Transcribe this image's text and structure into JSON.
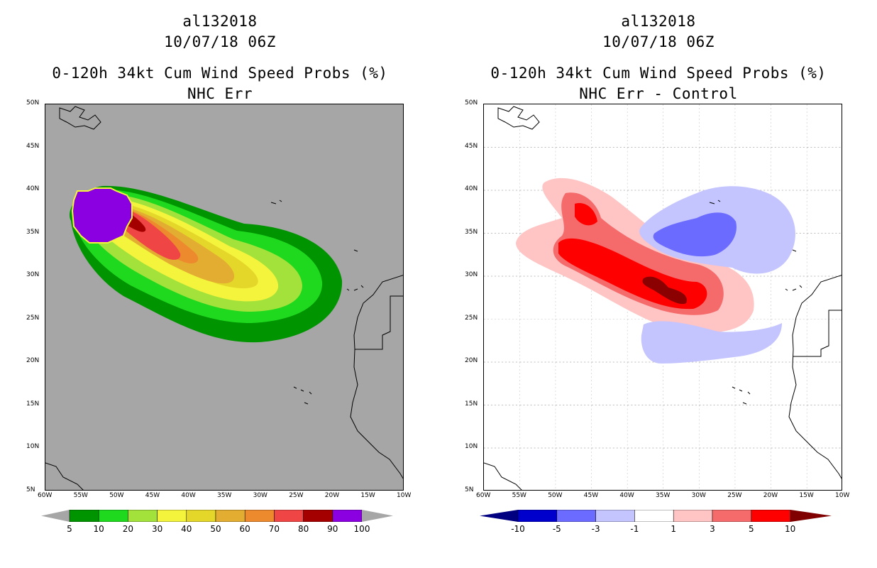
{
  "left": {
    "title_line1": "al132018",
    "title_line2": "10/07/18 06Z",
    "title_line3": "0-120h 34kt Cum Wind Speed Probs (%)",
    "title_line4": "NHC Err",
    "colorbar_labels": [
      "5",
      "10",
      "20",
      "30",
      "40",
      "50",
      "60",
      "70",
      "80",
      "90",
      "100"
    ],
    "colorbar_colors": [
      "#009400",
      "#1ed91e",
      "#a3e23a",
      "#f4f43c",
      "#e5d62a",
      "#e3ad31",
      "#ed8a2e",
      "#ef4545",
      "#a50000",
      "#8a00e0"
    ]
  },
  "right": {
    "title_line1": "al132018",
    "title_line2": "10/07/18 06Z",
    "title_line3": "0-120h 34kt Cum Wind Speed Probs (%)",
    "title_line4": "NHC Err - Control",
    "colorbar_labels": [
      "-10",
      "-5",
      "-3",
      "-1",
      "1",
      "3",
      "5",
      "10"
    ],
    "colorbar_colors": [
      "#0000cc",
      "#6b6bff",
      "#c4c4ff",
      "#ffffff",
      "#ffc4c4",
      "#f56a6a",
      "#ff0000"
    ]
  },
  "lat_labels": [
    "50N",
    "45N",
    "40N",
    "35N",
    "30N",
    "25N",
    "20N",
    "15N",
    "10N",
    "5N"
  ],
  "lon_labels": [
    "60W",
    "55W",
    "50W",
    "45W",
    "40W",
    "35W",
    "30W",
    "25W",
    "20W",
    "15W",
    "10W"
  ],
  "colors": {
    "background": "#a6a6a6"
  }
}
